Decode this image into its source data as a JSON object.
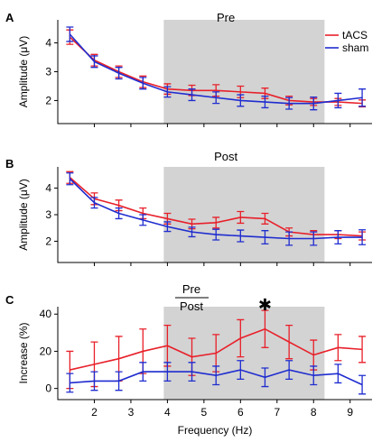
{
  "colors": {
    "tacs": "#e8202a",
    "sham": "#1f2ccf",
    "shade": "#d3d3d3"
  },
  "chart_data": [
    {
      "type": "line",
      "panel": "A",
      "title": "Pre",
      "ylabel": "Amplitude (μV)",
      "xlabel": "",
      "xlim": [
        1,
        9.6
      ],
      "ylim": [
        1.2,
        4.8
      ],
      "xticks": [
        2,
        3,
        4,
        5,
        6,
        7,
        8,
        9
      ],
      "yticks": [
        2,
        3,
        4
      ],
      "xtick_labels_visible": false,
      "shaded_region": [
        3.9,
        8.3
      ],
      "legend": {
        "position": "top-right",
        "entries": [
          "tACS",
          "sham"
        ]
      },
      "series": [
        {
          "name": "tACS",
          "color_key": "tacs",
          "x": [
            1.33,
            2.0,
            2.67,
            3.33,
            4.0,
            4.67,
            5.33,
            6.0,
            6.67,
            7.33,
            8.0,
            8.67,
            9.33
          ],
          "y": [
            4.2,
            3.4,
            3.0,
            2.65,
            2.4,
            2.35,
            2.35,
            2.3,
            2.25,
            2.0,
            1.95,
            1.95,
            1.9
          ],
          "err": [
            0.25,
            0.2,
            0.2,
            0.2,
            0.18,
            0.18,
            0.2,
            0.2,
            0.18,
            0.15,
            0.12,
            0.12,
            0.12
          ]
        },
        {
          "name": "sham",
          "color_key": "sham",
          "x": [
            1.33,
            2.0,
            2.67,
            3.33,
            4.0,
            4.67,
            5.33,
            6.0,
            6.67,
            7.33,
            8.0,
            8.67,
            9.33
          ],
          "y": [
            4.3,
            3.35,
            2.95,
            2.6,
            2.3,
            2.2,
            2.1,
            2.0,
            1.95,
            1.9,
            1.9,
            2.0,
            2.1
          ],
          "err": [
            0.25,
            0.2,
            0.2,
            0.2,
            0.18,
            0.2,
            0.2,
            0.2,
            0.2,
            0.2,
            0.22,
            0.25,
            0.3
          ]
        }
      ]
    },
    {
      "type": "line",
      "panel": "B",
      "title": "Post",
      "ylabel": "Amplitude (μV)",
      "xlabel": "",
      "xlim": [
        1,
        9.6
      ],
      "ylim": [
        1.2,
        4.8
      ],
      "xticks": [
        2,
        3,
        4,
        5,
        6,
        7,
        8,
        9
      ],
      "yticks": [
        2,
        3,
        4
      ],
      "xtick_labels_visible": false,
      "shaded_region": [
        3.9,
        8.3
      ],
      "series": [
        {
          "name": "tACS",
          "color_key": "tacs",
          "x": [
            1.33,
            2.0,
            2.67,
            3.33,
            4.0,
            4.67,
            5.33,
            6.0,
            6.67,
            7.33,
            8.0,
            8.67,
            9.33
          ],
          "y": [
            4.4,
            3.6,
            3.35,
            3.05,
            2.85,
            2.65,
            2.7,
            2.9,
            2.85,
            2.35,
            2.25,
            2.25,
            2.2
          ],
          "err": [
            0.22,
            0.22,
            0.2,
            0.2,
            0.2,
            0.18,
            0.2,
            0.22,
            0.2,
            0.15,
            0.15,
            0.15,
            0.15
          ]
        },
        {
          "name": "sham",
          "color_key": "sham",
          "x": [
            1.33,
            2.0,
            2.67,
            3.33,
            4.0,
            4.67,
            5.33,
            6.0,
            6.67,
            7.33,
            8.0,
            8.67,
            9.33
          ],
          "y": [
            4.35,
            3.45,
            3.05,
            2.8,
            2.55,
            2.35,
            2.25,
            2.2,
            2.15,
            2.1,
            2.1,
            2.15,
            2.15
          ],
          "err": [
            0.22,
            0.2,
            0.2,
            0.2,
            0.18,
            0.18,
            0.2,
            0.22,
            0.25,
            0.25,
            0.25,
            0.25,
            0.28
          ]
        }
      ]
    },
    {
      "type": "line",
      "panel": "C",
      "title_numerator": "Pre",
      "title_denominator": "Post",
      "ylabel": "Increase (%)",
      "xlabel": "Frequency (Hz)",
      "xlim": [
        1,
        9.6
      ],
      "ylim": [
        -6,
        44
      ],
      "xticks": [
        2,
        3,
        4,
        5,
        6,
        7,
        8,
        9
      ],
      "yticks": [
        0,
        20,
        40
      ],
      "xtick_labels_visible": true,
      "shaded_region": [
        3.9,
        8.3
      ],
      "annotation": {
        "text": "✱",
        "x": 6.67
      },
      "series": [
        {
          "name": "tACS",
          "color_key": "tacs",
          "x": [
            1.33,
            2.0,
            2.67,
            3.33,
            4.0,
            4.67,
            5.33,
            6.0,
            6.67,
            7.33,
            8.0,
            8.67,
            9.33
          ],
          "y": [
            10,
            13,
            16,
            20,
            23,
            17,
            19,
            27,
            32,
            25,
            18,
            22,
            21
          ],
          "err": [
            10,
            12,
            12,
            12,
            11,
            10,
            10,
            10,
            10,
            9,
            8,
            7,
            7
          ]
        },
        {
          "name": "sham",
          "color_key": "sham",
          "x": [
            1.33,
            2.0,
            2.67,
            3.33,
            4.0,
            4.67,
            5.33,
            6.0,
            6.67,
            7.33,
            8.0,
            8.67,
            9.33
          ],
          "y": [
            3,
            4,
            4,
            9,
            9,
            9,
            7,
            10,
            6,
            10,
            7,
            8,
            2
          ],
          "err": [
            5,
            5,
            5,
            5,
            5,
            5,
            5,
            5,
            5,
            5,
            5,
            5,
            5
          ]
        }
      ]
    }
  ]
}
